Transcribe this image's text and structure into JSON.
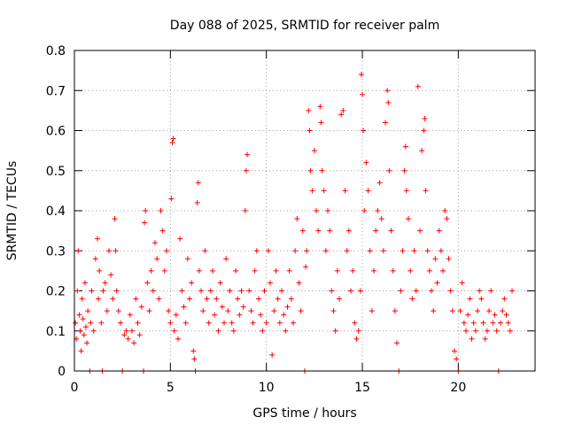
{
  "chart_data": {
    "type": "scatter",
    "title": "Day 088 of 2025, SRMTID for receiver palm",
    "xlabel": "GPS time / hours",
    "ylabel": "SRMTID / TECUs",
    "xlim": [
      0,
      24
    ],
    "ylim": [
      0,
      0.8
    ],
    "x_ticks": [
      0,
      5,
      10,
      15,
      20
    ],
    "y_ticks": [
      0,
      0.1,
      0.2,
      0.3,
      0.4,
      0.5,
      0.6,
      0.7,
      0.8
    ],
    "x_tick_labels": [
      "0",
      "5",
      "10",
      "15",
      "20"
    ],
    "y_tick_labels": [
      "0",
      "0.1",
      "0.2",
      "0.3",
      "0.4",
      "0.5",
      "0.6",
      "0.7",
      "0.8"
    ],
    "grid": true,
    "marker": "plus",
    "color": "#ff0000",
    "series": [
      {
        "name": "SRMTID",
        "points": [
          [
            0.05,
            0.12
          ],
          [
            0.1,
            0.08
          ],
          [
            0.15,
            0.2
          ],
          [
            0.2,
            0.3
          ],
          [
            0.25,
            0.14
          ],
          [
            0.3,
            0.1
          ],
          [
            0.35,
            0.05
          ],
          [
            0.4,
            0.18
          ],
          [
            0.45,
            0.13
          ],
          [
            0.5,
            0.09
          ],
          [
            0.55,
            0.22
          ],
          [
            0.6,
            0.11
          ],
          [
            0.65,
            0.07
          ],
          [
            0.7,
            0.15
          ],
          [
            0.8,
            0.0
          ],
          [
            0.85,
            0.12
          ],
          [
            0.9,
            0.2
          ],
          [
            1.0,
            0.1
          ],
          [
            1.1,
            0.28
          ],
          [
            1.2,
            0.33
          ],
          [
            1.25,
            0.18
          ],
          [
            1.3,
            0.25
          ],
          [
            1.4,
            0.12
          ],
          [
            1.45,
            0.0
          ],
          [
            1.5,
            0.2
          ],
          [
            1.6,
            0.22
          ],
          [
            1.7,
            0.15
          ],
          [
            1.8,
            0.3
          ],
          [
            1.9,
            0.24
          ],
          [
            2.0,
            0.18
          ],
          [
            2.1,
            0.38
          ],
          [
            2.15,
            0.3
          ],
          [
            2.2,
            0.2
          ],
          [
            2.3,
            0.15
          ],
          [
            2.4,
            0.12
          ],
          [
            2.5,
            0.0
          ],
          [
            2.6,
            0.09
          ],
          [
            2.7,
            0.1
          ],
          [
            2.8,
            0.08
          ],
          [
            2.9,
            0.14
          ],
          [
            3.0,
            0.1
          ],
          [
            3.1,
            0.07
          ],
          [
            3.2,
            0.18
          ],
          [
            3.3,
            0.12
          ],
          [
            3.4,
            0.09
          ],
          [
            3.5,
            0.16
          ],
          [
            3.6,
            0.0
          ],
          [
            3.65,
            0.37
          ],
          [
            3.7,
            0.4
          ],
          [
            3.8,
            0.22
          ],
          [
            3.9,
            0.15
          ],
          [
            4.0,
            0.25
          ],
          [
            4.1,
            0.2
          ],
          [
            4.2,
            0.32
          ],
          [
            4.3,
            0.28
          ],
          [
            4.4,
            0.18
          ],
          [
            4.5,
            0.4
          ],
          [
            4.6,
            0.35
          ],
          [
            4.7,
            0.25
          ],
          [
            4.8,
            0.3
          ],
          [
            4.9,
            0.15
          ],
          [
            5.0,
            0.12
          ],
          [
            5.05,
            0.43
          ],
          [
            5.1,
            0.57
          ],
          [
            5.15,
            0.58
          ],
          [
            5.2,
            0.1
          ],
          [
            5.3,
            0.14
          ],
          [
            5.4,
            0.08
          ],
          [
            5.5,
            0.33
          ],
          [
            5.6,
            0.2
          ],
          [
            5.7,
            0.16
          ],
          [
            5.8,
            0.12
          ],
          [
            5.9,
            0.28
          ],
          [
            6.0,
            0.18
          ],
          [
            6.1,
            0.22
          ],
          [
            6.2,
            0.05
          ],
          [
            6.25,
            0.03
          ],
          [
            6.3,
            0.0
          ],
          [
            6.4,
            0.42
          ],
          [
            6.45,
            0.47
          ],
          [
            6.5,
            0.25
          ],
          [
            6.6,
            0.2
          ],
          [
            6.7,
            0.15
          ],
          [
            6.8,
            0.3
          ],
          [
            6.9,
            0.18
          ],
          [
            7.0,
            0.12
          ],
          [
            7.1,
            0.2
          ],
          [
            7.2,
            0.25
          ],
          [
            7.3,
            0.14
          ],
          [
            7.4,
            0.18
          ],
          [
            7.5,
            0.1
          ],
          [
            7.6,
            0.22
          ],
          [
            7.7,
            0.16
          ],
          [
            7.8,
            0.12
          ],
          [
            7.9,
            0.28
          ],
          [
            8.0,
            0.15
          ],
          [
            8.1,
            0.2
          ],
          [
            8.2,
            0.12
          ],
          [
            8.3,
            0.1
          ],
          [
            8.4,
            0.25
          ],
          [
            8.5,
            0.18
          ],
          [
            8.6,
            0.14
          ],
          [
            8.7,
            0.2
          ],
          [
            8.8,
            0.16
          ],
          [
            8.9,
            0.4
          ],
          [
            8.95,
            0.5
          ],
          [
            9.0,
            0.54
          ],
          [
            9.1,
            0.2
          ],
          [
            9.2,
            0.15
          ],
          [
            9.3,
            0.12
          ],
          [
            9.4,
            0.25
          ],
          [
            9.5,
            0.3
          ],
          [
            9.6,
            0.18
          ],
          [
            9.7,
            0.14
          ],
          [
            9.8,
            0.1
          ],
          [
            9.9,
            0.2
          ],
          [
            10.0,
            0.12
          ],
          [
            10.1,
            0.3
          ],
          [
            10.2,
            0.22
          ],
          [
            10.3,
            0.04
          ],
          [
            10.4,
            0.15
          ],
          [
            10.5,
            0.25
          ],
          [
            10.6,
            0.18
          ],
          [
            10.7,
            0.12
          ],
          [
            10.8,
            0.2
          ],
          [
            10.9,
            0.14
          ],
          [
            11.0,
            0.1
          ],
          [
            11.1,
            0.16
          ],
          [
            11.2,
            0.25
          ],
          [
            11.3,
            0.18
          ],
          [
            11.4,
            0.12
          ],
          [
            11.5,
            0.3
          ],
          [
            11.6,
            0.38
          ],
          [
            11.7,
            0.22
          ],
          [
            11.8,
            0.15
          ],
          [
            11.9,
            0.35
          ],
          [
            12.0,
            0.0
          ],
          [
            12.05,
            0.26
          ],
          [
            12.1,
            0.3
          ],
          [
            12.2,
            0.65
          ],
          [
            12.25,
            0.6
          ],
          [
            12.3,
            0.5
          ],
          [
            12.4,
            0.45
          ],
          [
            12.5,
            0.55
          ],
          [
            12.6,
            0.4
          ],
          [
            12.7,
            0.35
          ],
          [
            12.8,
            0.66
          ],
          [
            12.85,
            0.62
          ],
          [
            12.9,
            0.5
          ],
          [
            13.0,
            0.45
          ],
          [
            13.1,
            0.3
          ],
          [
            13.2,
            0.4
          ],
          [
            13.3,
            0.35
          ],
          [
            13.4,
            0.2
          ],
          [
            13.5,
            0.15
          ],
          [
            13.6,
            0.1
          ],
          [
            13.7,
            0.25
          ],
          [
            13.8,
            0.18
          ],
          [
            13.9,
            0.64
          ],
          [
            14.0,
            0.65
          ],
          [
            14.1,
            0.45
          ],
          [
            14.2,
            0.3
          ],
          [
            14.3,
            0.35
          ],
          [
            14.4,
            0.2
          ],
          [
            14.5,
            0.25
          ],
          [
            14.6,
            0.12
          ],
          [
            14.7,
            0.08
          ],
          [
            14.8,
            0.1
          ],
          [
            14.9,
            0.2
          ],
          [
            14.95,
            0.74
          ],
          [
            15.0,
            0.69
          ],
          [
            15.05,
            0.6
          ],
          [
            15.1,
            0.4
          ],
          [
            15.2,
            0.52
          ],
          [
            15.3,
            0.45
          ],
          [
            15.4,
            0.3
          ],
          [
            15.5,
            0.15
          ],
          [
            15.6,
            0.25
          ],
          [
            15.7,
            0.35
          ],
          [
            15.8,
            0.4
          ],
          [
            15.9,
            0.47
          ],
          [
            16.0,
            0.38
          ],
          [
            16.1,
            0.3
          ],
          [
            16.2,
            0.62
          ],
          [
            16.3,
            0.7
          ],
          [
            16.35,
            0.67
          ],
          [
            16.4,
            0.5
          ],
          [
            16.5,
            0.35
          ],
          [
            16.6,
            0.25
          ],
          [
            16.7,
            0.15
          ],
          [
            16.8,
            0.07
          ],
          [
            16.9,
            0.0
          ],
          [
            17.0,
            0.2
          ],
          [
            17.1,
            0.3
          ],
          [
            17.2,
            0.5
          ],
          [
            17.25,
            0.56
          ],
          [
            17.3,
            0.45
          ],
          [
            17.4,
            0.38
          ],
          [
            17.5,
            0.25
          ],
          [
            17.6,
            0.18
          ],
          [
            17.7,
            0.3
          ],
          [
            17.8,
            0.2
          ],
          [
            17.9,
            0.71
          ],
          [
            18.0,
            0.35
          ],
          [
            18.1,
            0.55
          ],
          [
            18.2,
            0.6
          ],
          [
            18.25,
            0.63
          ],
          [
            18.3,
            0.45
          ],
          [
            18.4,
            0.3
          ],
          [
            18.5,
            0.25
          ],
          [
            18.6,
            0.2
          ],
          [
            18.7,
            0.15
          ],
          [
            18.8,
            0.28
          ],
          [
            18.9,
            0.22
          ],
          [
            19.0,
            0.35
          ],
          [
            19.1,
            0.3
          ],
          [
            19.2,
            0.25
          ],
          [
            19.3,
            0.4
          ],
          [
            19.4,
            0.38
          ],
          [
            19.5,
            0.28
          ],
          [
            19.6,
            0.2
          ],
          [
            19.7,
            0.15
          ],
          [
            19.8,
            0.05
          ],
          [
            19.9,
            0.03
          ],
          [
            20.0,
            0.0
          ],
          [
            20.1,
            0.15
          ],
          [
            20.2,
            0.22
          ],
          [
            20.3,
            0.12
          ],
          [
            20.4,
            0.1
          ],
          [
            20.5,
            0.14
          ],
          [
            20.6,
            0.18
          ],
          [
            20.7,
            0.08
          ],
          [
            20.8,
            0.12
          ],
          [
            20.9,
            0.1
          ],
          [
            21.0,
            0.15
          ],
          [
            21.1,
            0.2
          ],
          [
            21.2,
            0.18
          ],
          [
            21.3,
            0.12
          ],
          [
            21.4,
            0.08
          ],
          [
            21.5,
            0.1
          ],
          [
            21.6,
            0.15
          ],
          [
            21.7,
            0.2
          ],
          [
            21.8,
            0.12
          ],
          [
            21.9,
            0.14
          ],
          [
            22.0,
            0.1
          ],
          [
            22.1,
            0.0
          ],
          [
            22.2,
            0.12
          ],
          [
            22.3,
            0.15
          ],
          [
            22.4,
            0.18
          ],
          [
            22.5,
            0.14
          ],
          [
            22.6,
            0.12
          ],
          [
            22.7,
            0.1
          ],
          [
            22.8,
            0.2
          ]
        ]
      }
    ]
  }
}
